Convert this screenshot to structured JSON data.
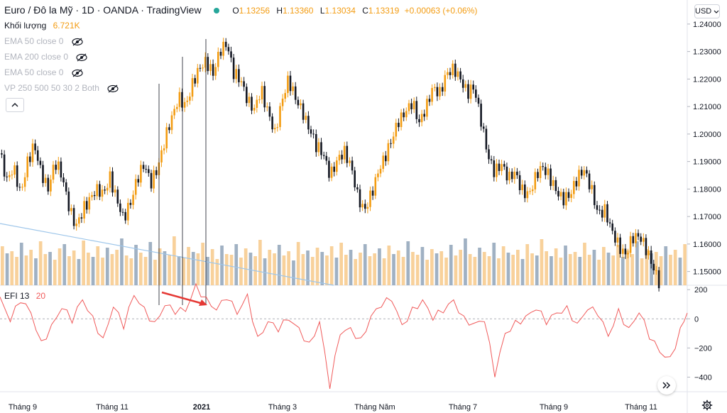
{
  "header": {
    "symbol": "Euro / Đô la Mỹ",
    "interval": "1D",
    "broker": "OANDA",
    "source": "TradingView",
    "o_label": "O",
    "o_value": "1.13256",
    "h_label": "H",
    "h_value": "1.13360",
    "l_label": "L",
    "l_value": "1.13034",
    "c_label": "C",
    "c_value": "1.13319",
    "change": "+0.00063 (+0.06%)"
  },
  "volume_legend": {
    "label": "Khối lượng",
    "value": "6.721K"
  },
  "indicators": [
    {
      "label": "EMA 50 close 0"
    },
    {
      "label": "EMA 200 close 0"
    },
    {
      "label": "EMA 50 close 0"
    },
    {
      "label": "VP 250 500 50 30 2 Both"
    }
  ],
  "efi_legend": {
    "label": "EFI 13",
    "value": "20"
  },
  "currency_button": "USD",
  "collapse_icon": "chevron-up-icon",
  "scroll_icon": "double-chevron-right-icon",
  "settings_icon": "gear-icon",
  "colors": {
    "up": "#f39c12",
    "down": "#131722",
    "vol_up": "#f7c98a",
    "vol_down": "#8fa3b8",
    "efi": "#f05a5a",
    "arrow": "#e53935",
    "trend": "#9ec6ea"
  },
  "price_axis": {
    "ticks": [
      "1.24000",
      "1.23000",
      "1.22000",
      "1.21000",
      "1.20000",
      "1.19000",
      "1.18000",
      "1.17000",
      "1.16000",
      "1.15000"
    ]
  },
  "efi_axis": {
    "ticks": [
      "200",
      "0",
      "−200",
      "−400"
    ]
  },
  "time_axis": {
    "ticks": [
      "Tháng 9",
      "Tháng 11",
      "2021",
      "Tháng 3",
      "Tháng Năm",
      "Tháng 7",
      "Tháng 9",
      "Tháng 11"
    ]
  },
  "chart_data": {
    "type": "candlestick",
    "y_range": [
      1.145,
      1.241
    ],
    "efi_range": [
      -500,
      230
    ],
    "close_path": [
      [
        0,
        1.193
      ],
      [
        4,
        1.183
      ],
      [
        8,
        1.188
      ],
      [
        12,
        1.178
      ],
      [
        16,
        1.19
      ],
      [
        20,
        1.196
      ],
      [
        24,
        1.186
      ],
      [
        28,
        1.18
      ],
      [
        32,
        1.19
      ],
      [
        36,
        1.185
      ],
      [
        40,
        1.174
      ],
      [
        44,
        1.166
      ],
      [
        48,
        1.172
      ],
      [
        52,
        1.176
      ],
      [
        56,
        1.18
      ],
      [
        60,
        1.178
      ],
      [
        64,
        1.184
      ],
      [
        68,
        1.176
      ],
      [
        72,
        1.169
      ],
      [
        76,
        1.175
      ],
      [
        80,
        1.184
      ],
      [
        84,
        1.189
      ],
      [
        88,
        1.182
      ],
      [
        92,
        1.188
      ],
      [
        96,
        1.198
      ],
      [
        100,
        1.206
      ],
      [
        104,
        1.213
      ],
      [
        108,
        1.21
      ],
      [
        112,
        1.218
      ],
      [
        116,
        1.224
      ],
      [
        120,
        1.226
      ],
      [
        124,
        1.222
      ],
      [
        128,
        1.23
      ],
      [
        132,
        1.233
      ],
      [
        136,
        1.222
      ],
      [
        140,
        1.22
      ],
      [
        144,
        1.212
      ],
      [
        148,
        1.209
      ],
      [
        152,
        1.216
      ],
      [
        156,
        1.208
      ],
      [
        160,
        1.2
      ],
      [
        164,
        1.212
      ],
      [
        168,
        1.22
      ],
      [
        172,
        1.213
      ],
      [
        176,
        1.208
      ],
      [
        180,
        1.202
      ],
      [
        184,
        1.196
      ],
      [
        188,
        1.193
      ],
      [
        192,
        1.185
      ],
      [
        196,
        1.19
      ],
      [
        200,
        1.194
      ],
      [
        204,
        1.189
      ],
      [
        208,
        1.178
      ],
      [
        212,
        1.172
      ],
      [
        216,
        1.178
      ],
      [
        220,
        1.186
      ],
      [
        224,
        1.192
      ],
      [
        228,
        1.198
      ],
      [
        232,
        1.205
      ],
      [
        236,
        1.208
      ],
      [
        240,
        1.212
      ],
      [
        244,
        1.204
      ],
      [
        248,
        1.21
      ],
      [
        252,
        1.217
      ],
      [
        256,
        1.215
      ],
      [
        260,
        1.222
      ],
      [
        264,
        1.224
      ],
      [
        268,
        1.22
      ],
      [
        272,
        1.215
      ],
      [
        276,
        1.217
      ],
      [
        280,
        1.205
      ],
      [
        284,
        1.192
      ],
      [
        288,
        1.186
      ],
      [
        292,
        1.189
      ],
      [
        296,
        1.184
      ],
      [
        300,
        1.186
      ],
      [
        304,
        1.179
      ],
      [
        308,
        1.178
      ],
      [
        312,
        1.185
      ],
      [
        316,
        1.188
      ],
      [
        320,
        1.184
      ],
      [
        324,
        1.179
      ],
      [
        328,
        1.176
      ],
      [
        332,
        1.178
      ],
      [
        336,
        1.184
      ],
      [
        340,
        1.187
      ],
      [
        344,
        1.18
      ],
      [
        348,
        1.171
      ],
      [
        352,
        1.172
      ],
      [
        356,
        1.165
      ],
      [
        360,
        1.159
      ],
      [
        364,
        1.156
      ],
      [
        368,
        1.162
      ],
      [
        372,
        1.163
      ],
      [
        376,
        1.158
      ],
      [
        380,
        1.152
      ],
      [
        384,
        1.145
      ]
    ],
    "candle_wiggle": [
      0.0042,
      0.0038,
      0.0045,
      0.0035,
      0.0048
    ],
    "efi_path": [
      [
        0,
        150
      ],
      [
        6,
        -20
      ],
      [
        12,
        110
      ],
      [
        18,
        40
      ],
      [
        24,
        -150
      ],
      [
        30,
        -40
      ],
      [
        36,
        70
      ],
      [
        42,
        -30
      ],
      [
        48,
        130
      ],
      [
        54,
        20
      ],
      [
        60,
        -130
      ],
      [
        66,
        80
      ],
      [
        72,
        -70
      ],
      [
        78,
        160
      ],
      [
        84,
        80
      ],
      [
        90,
        -20
      ],
      [
        96,
        90
      ],
      [
        102,
        30
      ],
      [
        108,
        50
      ],
      [
        114,
        240
      ],
      [
        120,
        150
      ],
      [
        126,
        60
      ],
      [
        132,
        130
      ],
      [
        138,
        30
      ],
      [
        144,
        170
      ],
      [
        150,
        -120
      ],
      [
        156,
        -20
      ],
      [
        162,
        -90
      ],
      [
        168,
        -10
      ],
      [
        174,
        -60
      ],
      [
        180,
        -160
      ],
      [
        186,
        -20
      ],
      [
        192,
        -480
      ],
      [
        198,
        -110
      ],
      [
        204,
        -60
      ],
      [
        210,
        -130
      ],
      [
        216,
        20
      ],
      [
        222,
        80
      ],
      [
        228,
        120
      ],
      [
        234,
        -40
      ],
      [
        240,
        80
      ],
      [
        246,
        130
      ],
      [
        252,
        -10
      ],
      [
        258,
        40
      ],
      [
        264,
        130
      ],
      [
        270,
        20
      ],
      [
        276,
        -30
      ],
      [
        282,
        -20
      ],
      [
        288,
        -400
      ],
      [
        294,
        -100
      ],
      [
        300,
        -10
      ],
      [
        306,
        20
      ],
      [
        312,
        60
      ],
      [
        318,
        -40
      ],
      [
        324,
        40
      ],
      [
        330,
        90
      ],
      [
        336,
        -30
      ],
      [
        342,
        60
      ],
      [
        348,
        20
      ],
      [
        354,
        -120
      ],
      [
        360,
        70
      ],
      [
        366,
        -60
      ],
      [
        372,
        40
      ],
      [
        378,
        -140
      ],
      [
        384,
        -230
      ],
      [
        390,
        -260
      ],
      [
        396,
        -60
      ],
      [
        400,
        40
      ]
    ],
    "volumes": [
      0.55,
      0.45,
      0.48,
      0.4,
      0.6,
      0.42,
      0.5,
      0.38,
      0.62,
      0.44,
      0.47,
      0.36,
      0.52,
      0.58,
      0.41,
      0.49,
      0.37,
      0.63,
      0.46,
      0.4,
      0.55,
      0.39,
      0.53,
      0.44,
      0.5,
      0.66,
      0.42,
      0.38,
      0.57,
      0.46,
      0.4,
      0.61,
      0.36,
      0.52,
      0.48,
      0.43,
      0.69,
      0.41,
      0.39,
      0.54,
      0.47,
      0.45,
      0.6,
      0.4,
      0.51,
      0.37,
      0.56,
      0.44,
      0.43,
      0.58,
      0.39,
      0.52,
      0.46,
      0.41,
      0.64,
      0.38,
      0.5,
      0.45,
      0.57,
      0.42,
      0.48,
      0.35,
      0.61,
      0.44,
      0.49,
      0.4,
      0.53,
      0.47,
      0.42,
      0.55,
      0.39,
      0.6,
      0.43,
      0.5,
      0.37,
      0.46,
      0.58,
      0.41,
      0.45,
      0.52,
      0.38,
      0.56,
      0.44,
      0.49,
      0.4,
      0.62,
      0.47,
      0.43,
      0.54,
      0.36,
      0.51,
      0.45,
      0.48,
      0.39,
      0.57,
      0.42,
      0.5,
      0.66,
      0.44,
      0.4,
      0.53,
      0.47,
      0.41,
      0.6,
      0.38,
      0.55,
      0.46,
      0.43,
      0.5,
      0.37,
      0.58,
      0.45,
      0.42,
      0.65,
      0.48,
      0.41,
      0.52,
      0.39,
      0.56,
      0.44,
      0.47,
      0.4,
      0.6,
      0.43,
      0.5,
      0.36,
      0.54,
      0.46,
      0.42,
      0.57,
      0.4,
      0.49,
      0.44,
      0.62,
      0.38,
      0.51,
      0.45,
      0.47,
      0.41,
      0.55,
      0.43,
      0.5,
      0.39,
      0.58
    ]
  }
}
